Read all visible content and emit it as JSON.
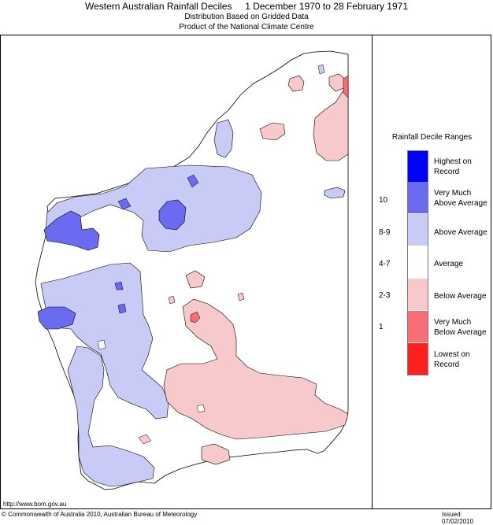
{
  "header": {
    "title": "Western Australian Rainfall Deciles     1 December 1970 to 28 February 1971",
    "subtitle1": "Distribution Based on Gridded Data",
    "subtitle2": "Product of the National Climate Centre"
  },
  "legend": {
    "title": "Rainfall Decile Ranges",
    "items": [
      {
        "label": "Highest on\nRecord",
        "range": "",
        "color": "#0000ff"
      },
      {
        "label": "Very Much\nAbove Average",
        "range": "10",
        "color": "#6b6bf2"
      },
      {
        "label": "Above Average",
        "range": "8-9",
        "color": "#c8cbf6"
      },
      {
        "label": "Average",
        "range": "4-7",
        "color": "#ffffff"
      },
      {
        "label": "Below Average",
        "range": "2-3",
        "color": "#f8c9cb"
      },
      {
        "label": "Very Much\nBelow Average",
        "range": "1",
        "color": "#f76e74"
      },
      {
        "label": "Lowest on\nRecord",
        "range": "",
        "color": "#ff2020"
      }
    ]
  },
  "footer": {
    "url": "http://www.bom.gov.au",
    "copyright": "© Commonwealth of Australia 2010, Australian Bureau of Meteorology",
    "issued": "Issued: 07/02/2010"
  },
  "colors": {
    "above": "#c8cbf6",
    "very_much_above": "#6b6bf2",
    "below": "#f8c9cb",
    "very_much_below": "#f76e74"
  }
}
